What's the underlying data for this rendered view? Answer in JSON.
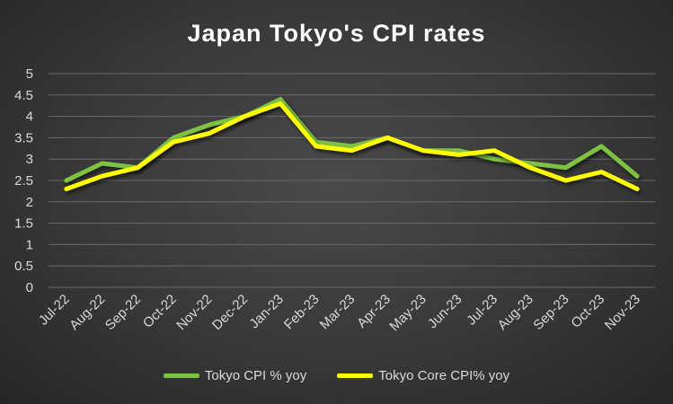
{
  "chart_data": {
    "type": "line",
    "title": "Japan Tokyo's CPI rates",
    "xlabel": "",
    "ylabel": "",
    "categories": [
      "Jul-22",
      "Aug-22",
      "Sep-22",
      "Oct-22",
      "Nov-22",
      "Dec-22",
      "Jan-23",
      "Feb-23",
      "Mar-23",
      "Apr-23",
      "May-23",
      "Jun-23",
      "Jul-23",
      "Aug-23",
      "Sep-23",
      "Oct-23",
      "Nov-23"
    ],
    "ylim": [
      0,
      5
    ],
    "yticks": [
      "0",
      "0.5",
      "1",
      "1.5",
      "2",
      "2.5",
      "3",
      "3.5",
      "4",
      "4.5",
      "5"
    ],
    "grid": true,
    "legend": "bottom",
    "series": [
      {
        "name": "Tokyo CPI % yoy",
        "color": "#7dc242",
        "values": [
          2.5,
          2.9,
          2.8,
          3.5,
          3.8,
          4.0,
          4.4,
          3.4,
          3.3,
          3.5,
          3.2,
          3.2,
          3.0,
          2.9,
          2.8,
          3.3,
          2.6
        ]
      },
      {
        "name": "Tokyo Core CPI% yoy",
        "color": "#ffff00",
        "values": [
          2.3,
          2.6,
          2.8,
          3.4,
          3.6,
          4.0,
          4.3,
          3.3,
          3.2,
          3.5,
          3.2,
          3.1,
          3.2,
          2.8,
          2.5,
          2.7,
          2.3
        ]
      }
    ]
  }
}
